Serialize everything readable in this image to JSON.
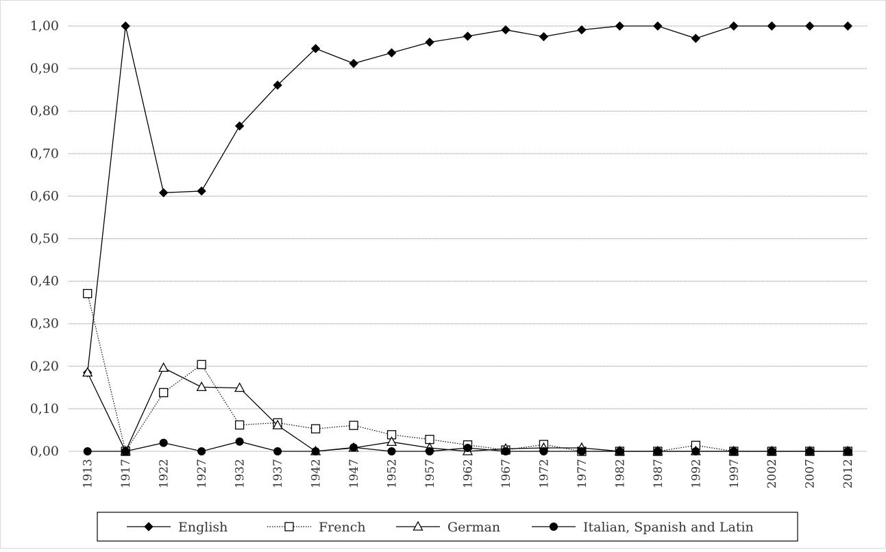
{
  "chart_data": {
    "type": "line",
    "title": "",
    "xlabel": "",
    "ylabel": "",
    "ylim": [
      0,
      1
    ],
    "y_ticks": [
      "0,00",
      "0,10",
      "0,20",
      "0,30",
      "0,40",
      "0,50",
      "0,60",
      "0,70",
      "0,80",
      "0,90",
      "1,00"
    ],
    "grid": true,
    "legend_position": "bottom",
    "categories": [
      "1913",
      "1917",
      "1922",
      "1927",
      "1932",
      "1937",
      "1942",
      "1947",
      "1952",
      "1957",
      "1962",
      "1967",
      "1972",
      "1977",
      "1982",
      "1987",
      "1992",
      "1997",
      "2002",
      "2007",
      "2012"
    ],
    "series": [
      {
        "name": "English",
        "marker": "diamond",
        "line": "solid",
        "color": "#000000",
        "values": [
          0.185,
          1.0,
          0.608,
          0.612,
          0.765,
          0.861,
          0.947,
          0.912,
          0.937,
          0.962,
          0.976,
          0.991,
          0.975,
          0.991,
          1.0,
          1.0,
          0.971,
          1.0,
          1.0,
          1.0,
          1.0
        ]
      },
      {
        "name": "French",
        "marker": "square-open",
        "line": "dotted",
        "color": "#000000",
        "values": [
          0.371,
          0.0,
          0.138,
          0.204,
          0.062,
          0.067,
          0.053,
          0.061,
          0.039,
          0.028,
          0.015,
          0.003,
          0.016,
          0.0,
          0.0,
          0.0,
          0.014,
          0.0,
          0.0,
          0.0,
          0.0
        ]
      },
      {
        "name": "German",
        "marker": "triangle-open",
        "line": "solid",
        "color": "#000000",
        "values": [
          0.185,
          0.0,
          0.196,
          0.151,
          0.149,
          0.061,
          0.0,
          0.008,
          0.022,
          0.008,
          0.0,
          0.006,
          0.008,
          0.008,
          0.0,
          0.0,
          0.0,
          0.0,
          0.0,
          0.0,
          0.0
        ]
      },
      {
        "name": "Italian, Spanish and Latin",
        "marker": "circle",
        "line": "solid",
        "color": "#000000",
        "values": [
          0.0,
          0.0,
          0.02,
          0.0,
          0.023,
          0.0,
          0.0,
          0.009,
          0.0,
          0.0,
          0.008,
          0.0,
          0.0,
          0.0,
          0.0,
          0.0,
          0.0,
          0.0,
          0.0,
          0.0,
          0.0
        ]
      }
    ]
  }
}
